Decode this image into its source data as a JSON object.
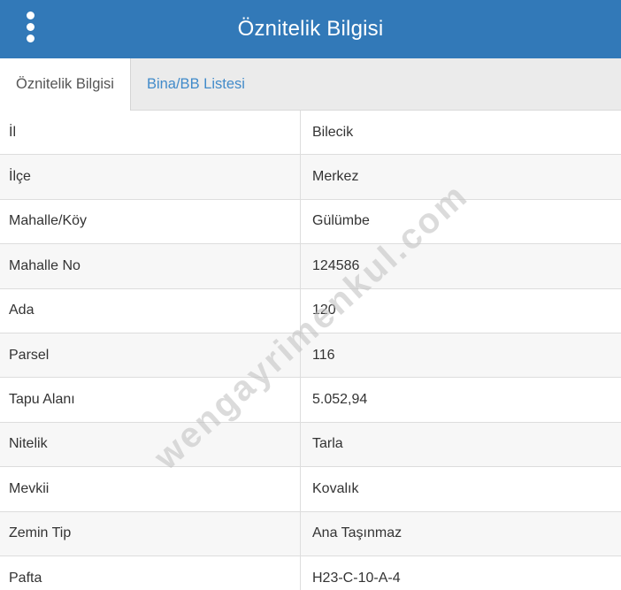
{
  "header": {
    "title": "Öznitelik Bilgisi"
  },
  "tabs": [
    {
      "label": "Öznitelik Bilgisi",
      "active": true
    },
    {
      "label": "Bina/BB Listesi",
      "active": false
    }
  ],
  "attributes": [
    {
      "label": "İl",
      "value": "Bilecik"
    },
    {
      "label": "İlçe",
      "value": "Merkez"
    },
    {
      "label": "Mahalle/Köy",
      "value": "Gülümbe"
    },
    {
      "label": "Mahalle No",
      "value": "124586"
    },
    {
      "label": "Ada",
      "value": "120"
    },
    {
      "label": "Parsel",
      "value": "116"
    },
    {
      "label": "Tapu Alanı",
      "value": "5.052,94"
    },
    {
      "label": "Nitelik",
      "value": "Tarla"
    },
    {
      "label": "Mevkii",
      "value": "Kovalık"
    },
    {
      "label": "Zemin Tip",
      "value": "Ana Taşınmaz"
    },
    {
      "label": "Pafta",
      "value": "H23-C-10-A-4"
    }
  ],
  "watermark": {
    "text": "wengayrimenkul.com"
  },
  "colors": {
    "header_bg": "#3279b8",
    "tab_link": "#428bca",
    "stripe": "#f7f7f7",
    "border": "#dddddd",
    "text": "#333333"
  }
}
